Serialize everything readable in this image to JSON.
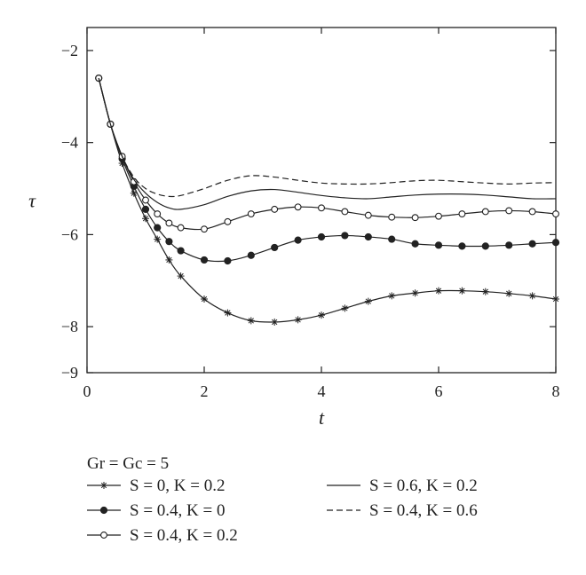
{
  "chart_data": {
    "type": "line",
    "title": "",
    "xlabel": "t",
    "ylabel": "τ",
    "xlim": [
      0,
      8
    ],
    "ylim": [
      -9,
      -1.5
    ],
    "xticks": [
      0,
      2,
      4,
      6,
      8
    ],
    "yticks": [
      -2,
      -4,
      -6,
      -8,
      -9
    ],
    "grid": false,
    "legend_title": "Gr = Gc = 5",
    "legend_position": "bottom",
    "series": [
      {
        "name": "S = 0, K = 0.2",
        "style": "solid",
        "marker": "asterisk",
        "x": [
          0.2,
          0.4,
          0.6,
          0.8,
          1.0,
          1.2,
          1.4,
          1.6,
          2.0,
          2.4,
          2.8,
          3.2,
          3.6,
          4.0,
          4.4,
          4.8,
          5.2,
          5.6,
          6.0,
          6.4,
          6.8,
          7.2,
          7.6,
          8.0
        ],
        "y": [
          -2.6,
          -3.6,
          -4.45,
          -5.1,
          -5.65,
          -6.1,
          -6.55,
          -6.9,
          -7.4,
          -7.7,
          -7.87,
          -7.9,
          -7.85,
          -7.75,
          -7.6,
          -7.45,
          -7.33,
          -7.27,
          -7.22,
          -7.22,
          -7.24,
          -7.28,
          -7.33,
          -7.4
        ]
      },
      {
        "name": "S = 0.4, K = 0",
        "style": "solid",
        "marker": "filled-circle",
        "x": [
          0.2,
          0.4,
          0.6,
          0.8,
          1.0,
          1.2,
          1.4,
          1.6,
          2.0,
          2.4,
          2.8,
          3.2,
          3.6,
          4.0,
          4.4,
          4.8,
          5.2,
          5.6,
          6.0,
          6.4,
          6.8,
          7.2,
          7.6,
          8.0
        ],
        "y": [
          -2.6,
          -3.6,
          -4.35,
          -4.95,
          -5.45,
          -5.85,
          -6.15,
          -6.35,
          -6.55,
          -6.57,
          -6.45,
          -6.28,
          -6.12,
          -6.05,
          -6.02,
          -6.05,
          -6.1,
          -6.2,
          -6.23,
          -6.25,
          -6.25,
          -6.23,
          -6.2,
          -6.17
        ]
      },
      {
        "name": "S = 0.4, K = 0.2",
        "style": "solid",
        "marker": "open-circle",
        "x": [
          0.2,
          0.4,
          0.6,
          0.8,
          1.0,
          1.2,
          1.4,
          1.6,
          2.0,
          2.4,
          2.8,
          3.2,
          3.6,
          4.0,
          4.4,
          4.8,
          5.2,
          5.6,
          6.0,
          6.4,
          6.8,
          7.2,
          7.6,
          8.0
        ],
        "y": [
          -2.6,
          -3.6,
          -4.3,
          -4.85,
          -5.25,
          -5.55,
          -5.75,
          -5.85,
          -5.88,
          -5.72,
          -5.55,
          -5.45,
          -5.4,
          -5.42,
          -5.5,
          -5.58,
          -5.62,
          -5.63,
          -5.6,
          -5.55,
          -5.5,
          -5.48,
          -5.5,
          -5.55
        ]
      },
      {
        "name": "S = 0.6, K = 0.2",
        "style": "solid",
        "marker": "none",
        "x": [
          0.2,
          0.4,
          0.6,
          0.8,
          1.0,
          1.2,
          1.4,
          1.6,
          2.0,
          2.4,
          2.8,
          3.2,
          3.6,
          4.0,
          4.4,
          4.8,
          5.2,
          5.6,
          6.0,
          6.4,
          6.8,
          7.2,
          7.6,
          8.0
        ],
        "y": [
          -2.6,
          -3.6,
          -4.3,
          -4.8,
          -5.1,
          -5.3,
          -5.42,
          -5.45,
          -5.35,
          -5.17,
          -5.05,
          -5.02,
          -5.08,
          -5.15,
          -5.2,
          -5.22,
          -5.18,
          -5.14,
          -5.12,
          -5.12,
          -5.14,
          -5.18,
          -5.22,
          -5.22
        ]
      },
      {
        "name": "S = 0.4, K = 0.6",
        "style": "dashed",
        "marker": "none",
        "x": [
          0.2,
          0.4,
          0.6,
          0.8,
          1.0,
          1.2,
          1.4,
          1.6,
          2.0,
          2.4,
          2.8,
          3.2,
          3.6,
          4.0,
          4.4,
          4.8,
          5.2,
          5.6,
          6.0,
          6.4,
          6.8,
          7.2,
          7.6,
          8.0
        ],
        "y": [
          -2.6,
          -3.6,
          -4.3,
          -4.75,
          -5.0,
          -5.12,
          -5.17,
          -5.15,
          -5.0,
          -4.82,
          -4.72,
          -4.75,
          -4.82,
          -4.88,
          -4.9,
          -4.9,
          -4.87,
          -4.83,
          -4.82,
          -4.85,
          -4.88,
          -4.9,
          -4.88,
          -4.87
        ]
      }
    ]
  }
}
